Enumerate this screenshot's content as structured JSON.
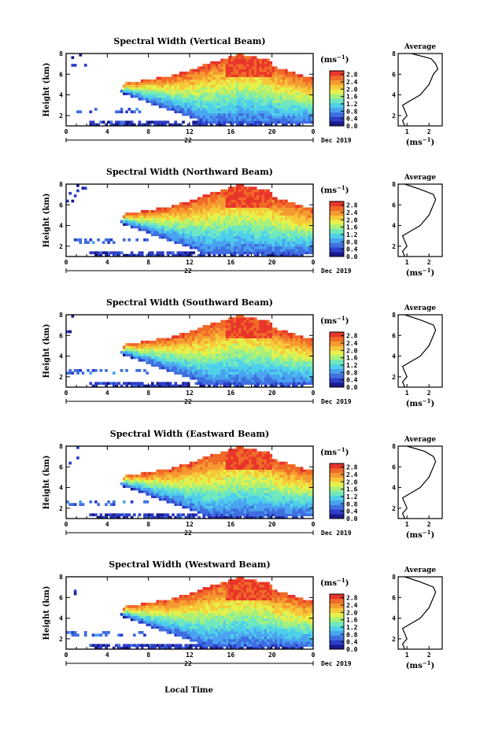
{
  "figure": {
    "xlabel": "Local Time",
    "ylabel": "Height (km)",
    "unit_label": "(ms",
    "unit_exp": "−1",
    "date_label": "Dec 2019",
    "day_label": "22",
    "average_title": "Average",
    "colors": {
      "palette": [
        "#1a1a8c",
        "#2d3ec8",
        "#3f6fe0",
        "#4aa3f0",
        "#4fd0ea",
        "#6fe8c0",
        "#a8f07a",
        "#e6f04a",
        "#f7c83a",
        "#f59a30",
        "#f06a28",
        "#e8352a"
      ]
    }
  },
  "chart_data": [
    {
      "type": "heatmap",
      "title": "Spectral Width (Vertical Beam)",
      "x_ticks": [
        "0",
        "4",
        "8",
        "12",
        "16",
        "20",
        "0"
      ],
      "y_ticks": [
        "2",
        "4",
        "6",
        "8"
      ],
      "xlim": [
        0,
        24
      ],
      "ylim": [
        1,
        8
      ],
      "colorbar_ticks": [
        "0.0",
        "0.4",
        "0.8",
        "1.2",
        "1.6",
        "2.0",
        "2.4",
        "2.8"
      ],
      "colorbar_range": [
        0,
        3.0
      ],
      "average_profile": {
        "x_ticks": [
          "1",
          "2"
        ],
        "xlim": [
          0.6,
          2.6
        ],
        "ylim": [
          1,
          8
        ],
        "height": [
          1.0,
          1.5,
          2.0,
          2.5,
          3.0,
          3.5,
          4.0,
          4.5,
          5.0,
          5.5,
          6.0,
          6.5,
          7.0,
          7.5,
          8.0
        ],
        "width": [
          0.9,
          0.8,
          1.0,
          0.9,
          0.8,
          1.2,
          1.6,
          1.8,
          2.0,
          2.1,
          2.2,
          2.4,
          2.3,
          2.1,
          1.2
        ]
      }
    },
    {
      "type": "heatmap",
      "title": "Spectral Width (Northward Beam)",
      "x_ticks": [
        "0",
        "4",
        "8",
        "12",
        "16",
        "20",
        "0"
      ],
      "y_ticks": [
        "2",
        "4",
        "6",
        "8"
      ],
      "xlim": [
        0,
        24
      ],
      "ylim": [
        1,
        8
      ],
      "colorbar_ticks": [
        "0.0",
        "0.4",
        "0.8",
        "1.2",
        "1.6",
        "2.0",
        "2.4",
        "2.8"
      ],
      "colorbar_range": [
        0,
        3.0
      ],
      "average_profile": {
        "x_ticks": [
          "1",
          "2"
        ],
        "xlim": [
          0.6,
          2.6
        ],
        "ylim": [
          1,
          8
        ],
        "height": [
          1.0,
          1.5,
          2.0,
          2.5,
          3.0,
          3.5,
          4.0,
          4.5,
          5.0,
          5.5,
          6.0,
          6.5,
          7.0,
          7.5,
          8.0
        ],
        "width": [
          0.9,
          0.8,
          1.0,
          0.9,
          0.8,
          1.2,
          1.6,
          1.8,
          2.0,
          2.1,
          2.2,
          2.3,
          2.2,
          1.6,
          0.9
        ]
      }
    },
    {
      "type": "heatmap",
      "title": "Spectral Width (Southward Beam)",
      "x_ticks": [
        "0",
        "4",
        "8",
        "12",
        "16",
        "20",
        "0"
      ],
      "y_ticks": [
        "2",
        "4",
        "6",
        "8"
      ],
      "xlim": [
        0,
        24
      ],
      "ylim": [
        1,
        8
      ],
      "colorbar_ticks": [
        "0.0",
        "0.4",
        "0.8",
        "1.2",
        "1.6",
        "2.0",
        "2.4",
        "2.8"
      ],
      "colorbar_range": [
        0,
        3.0
      ],
      "average_profile": {
        "x_ticks": [
          "1",
          "2"
        ],
        "xlim": [
          0.6,
          2.6
        ],
        "ylim": [
          1,
          8
        ],
        "height": [
          1.0,
          1.5,
          2.0,
          2.5,
          3.0,
          3.5,
          4.0,
          4.5,
          5.0,
          5.5,
          6.0,
          6.5,
          7.0,
          7.5,
          8.0
        ],
        "width": [
          0.9,
          0.8,
          1.0,
          0.9,
          0.8,
          1.2,
          1.6,
          1.8,
          2.0,
          2.1,
          2.2,
          2.3,
          2.2,
          1.6,
          0.9
        ]
      }
    },
    {
      "type": "heatmap",
      "title": "Spectral Width (Eastward Beam)",
      "x_ticks": [
        "0",
        "4",
        "8",
        "12",
        "16",
        "20",
        "0"
      ],
      "y_ticks": [
        "2",
        "4",
        "6",
        "8"
      ],
      "xlim": [
        0,
        24
      ],
      "ylim": [
        1,
        8
      ],
      "colorbar_ticks": [
        "0.0",
        "0.4",
        "0.8",
        "1.2",
        "1.6",
        "2.0",
        "2.4",
        "2.8"
      ],
      "colorbar_range": [
        0,
        3.0
      ],
      "average_profile": {
        "x_ticks": [
          "1",
          "2"
        ],
        "xlim": [
          0.6,
          2.6
        ],
        "ylim": [
          1,
          8
        ],
        "height": [
          1.0,
          1.5,
          2.0,
          2.5,
          3.0,
          3.5,
          4.0,
          4.5,
          5.0,
          5.5,
          6.0,
          6.5,
          7.0,
          7.5,
          8.0
        ],
        "width": [
          0.9,
          0.8,
          1.0,
          0.9,
          0.8,
          1.2,
          1.6,
          1.8,
          2.0,
          2.1,
          2.2,
          2.3,
          2.2,
          1.8,
          1.0
        ]
      }
    },
    {
      "type": "heatmap",
      "title": "Spectral Width (Westward Beam)",
      "x_ticks": [
        "0",
        "4",
        "8",
        "12",
        "16",
        "20",
        "0"
      ],
      "y_ticks": [
        "2",
        "4",
        "6",
        "8"
      ],
      "xlim": [
        0,
        24
      ],
      "ylim": [
        1,
        8
      ],
      "colorbar_ticks": [
        "0.0",
        "0.4",
        "0.8",
        "1.2",
        "1.6",
        "2.0",
        "2.4",
        "2.8"
      ],
      "colorbar_range": [
        0,
        3.0
      ],
      "average_profile": {
        "x_ticks": [
          "1",
          "2"
        ],
        "xlim": [
          0.6,
          2.6
        ],
        "ylim": [
          1,
          8
        ],
        "height": [
          1.0,
          1.5,
          2.0,
          2.5,
          3.0,
          3.5,
          4.0,
          4.5,
          5.0,
          5.5,
          6.0,
          6.5,
          7.0,
          7.5,
          8.0
        ],
        "width": [
          0.9,
          0.8,
          1.0,
          0.9,
          0.8,
          1.2,
          1.6,
          1.8,
          2.0,
          2.1,
          2.2,
          2.3,
          2.2,
          1.6,
          0.9
        ]
      }
    }
  ]
}
